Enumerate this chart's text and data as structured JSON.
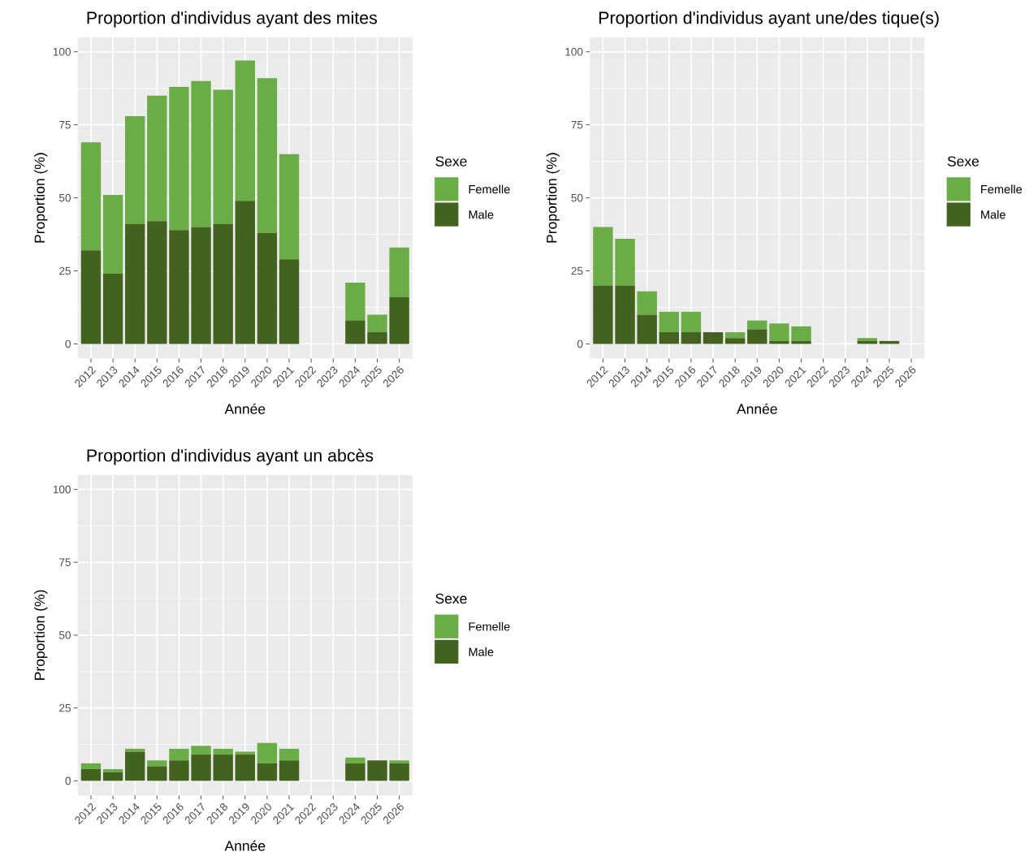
{
  "chart_data": [
    {
      "type": "bar",
      "stacked": true,
      "title": "Proportion d'individus ayant des mites",
      "xlabel": "Année",
      "ylabel": "Proportion (%)",
      "legend_title": "Sexe",
      "legend": "right",
      "grid": true,
      "categories": [
        "2012",
        "2013",
        "2014",
        "2015",
        "2016",
        "2017",
        "2018",
        "2019",
        "2020",
        "2021",
        "2022",
        "2023",
        "2024",
        "2025",
        "2026"
      ],
      "series": [
        {
          "name": "Male",
          "color": "#44621f",
          "values": [
            32,
            24,
            41,
            42,
            39,
            40,
            41,
            49,
            38,
            29,
            null,
            null,
            8,
            4,
            16
          ]
        },
        {
          "name": "Femelle",
          "color": "#6aac46",
          "values": [
            37,
            27,
            37,
            43,
            49,
            50,
            46,
            48,
            53,
            36,
            null,
            null,
            13,
            6,
            17
          ]
        }
      ],
      "ylim": [
        -5,
        105
      ],
      "yticks": [
        0,
        25,
        50,
        75,
        100
      ]
    },
    {
      "type": "bar",
      "stacked": true,
      "title": "Proportion d'individus ayant une/des tique(s)",
      "xlabel": "Année",
      "ylabel": "Proportion (%)",
      "legend_title": "Sexe",
      "legend": "right",
      "grid": true,
      "categories": [
        "2012",
        "2013",
        "2014",
        "2015",
        "2016",
        "2017",
        "2018",
        "2019",
        "2020",
        "2021",
        "2022",
        "2023",
        "2024",
        "2025",
        "2026"
      ],
      "series": [
        {
          "name": "Male",
          "color": "#44621f",
          "values": [
            20,
            20,
            10,
            4,
            4,
            4,
            2,
            5,
            1,
            1,
            null,
            null,
            1,
            1,
            null
          ]
        },
        {
          "name": "Femelle",
          "color": "#6aac46",
          "values": [
            20,
            16,
            8,
            7,
            7,
            0,
            2,
            3,
            6,
            5,
            null,
            null,
            1,
            0,
            null
          ]
        }
      ],
      "ylim": [
        -5,
        105
      ],
      "yticks": [
        0,
        25,
        50,
        75,
        100
      ]
    },
    {
      "type": "bar",
      "stacked": true,
      "title": "Proportion d'individus ayant un abcès",
      "xlabel": "Année",
      "ylabel": "Proportion (%)",
      "legend_title": "Sexe",
      "legend": "right",
      "grid": true,
      "categories": [
        "2012",
        "2013",
        "2014",
        "2015",
        "2016",
        "2017",
        "2018",
        "2019",
        "2020",
        "2021",
        "2022",
        "2023",
        "2024",
        "2025",
        "2026"
      ],
      "series": [
        {
          "name": "Male",
          "color": "#44621f",
          "values": [
            4,
            3,
            10,
            5,
            7,
            9,
            9,
            9,
            6,
            7,
            null,
            null,
            6,
            7,
            6
          ]
        },
        {
          "name": "Femelle",
          "color": "#6aac46",
          "values": [
            2,
            1,
            1,
            2,
            4,
            3,
            2,
            1,
            7,
            4,
            null,
            null,
            2,
            0,
            1
          ]
        }
      ],
      "ylim": [
        -5,
        105
      ],
      "yticks": [
        0,
        25,
        50,
        75,
        100
      ]
    }
  ]
}
